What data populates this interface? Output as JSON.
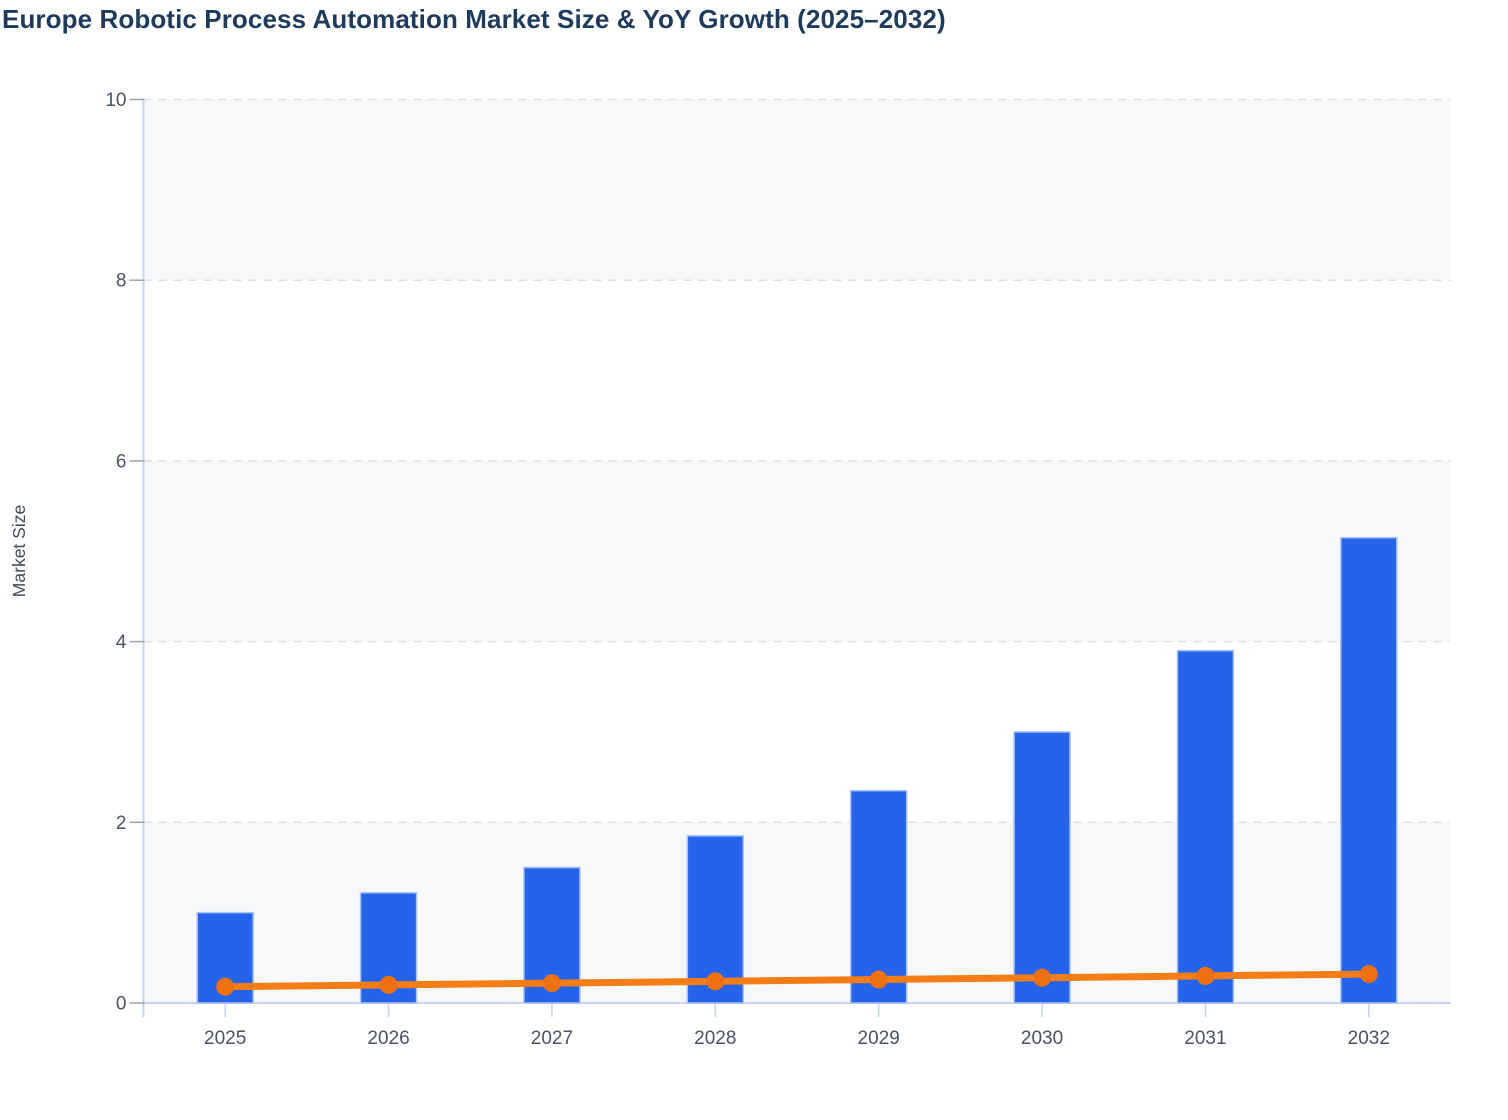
{
  "title": "Europe Robotic Process Automation Market Size & YoY Growth (2025–2032)",
  "y_axis_label": "Market Size",
  "colors": {
    "bar": "#2563eb",
    "bar_edge": "#a8c1f5",
    "line": "#f57d17",
    "marker": "#ef7011",
    "band": "#f7f8fa",
    "gridline": "#dcdfe5",
    "axis_line": "#c7d3ef",
    "y_tick_mark": "#9aa3b2",
    "title_text": "#1f3b5c",
    "tick_label_text": "#4a5263",
    "axis_title_text": "#434c5b",
    "background": "#ffffff"
  },
  "chart_data": {
    "type": "combo",
    "categories": [
      "2025",
      "2026",
      "2027",
      "2028",
      "2029",
      "2030",
      "2031",
      "2032"
    ],
    "series": [
      {
        "name": "Market Size",
        "type": "bar",
        "values": [
          1.0,
          1.22,
          1.5,
          1.85,
          2.35,
          3.0,
          3.9,
          5.15
        ]
      },
      {
        "name": "YoY Growth",
        "type": "line",
        "values": [
          0.18,
          0.2,
          0.22,
          0.24,
          0.26,
          0.28,
          0.3,
          0.32
        ]
      }
    ],
    "title": "Europe Robotic Process Automation Market Size & YoY Growth (2025–2032)",
    "xlabel": "",
    "ylabel": "Market Size",
    "ylim": [
      0,
      10
    ],
    "yticks": [
      0,
      2,
      4,
      6,
      8,
      10
    ],
    "grid": "horizontal-dashed",
    "shaded_bands": [
      [
        0,
        2
      ],
      [
        4,
        6
      ],
      [
        8,
        10
      ]
    ],
    "legend_position": "none"
  }
}
